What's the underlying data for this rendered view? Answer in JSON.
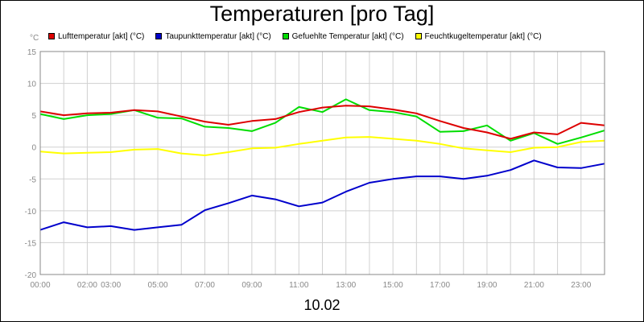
{
  "chart_data": {
    "type": "line",
    "title": "Temperaturen [pro Tag]",
    "date_label": "10.02",
    "y_unit": "°C",
    "ylim": [
      -20,
      15
    ],
    "y_ticks": [
      "15",
      "10",
      "5",
      "0",
      "-5",
      "-10",
      "-15",
      "-20"
    ],
    "x_ticks": [
      {
        "h": 0,
        "label": "00:00"
      },
      {
        "h": 2,
        "label": "02:00"
      },
      {
        "h": 3,
        "label": "03:00"
      },
      {
        "h": 5,
        "label": "05:00"
      },
      {
        "h": 7,
        "label": "07:00"
      },
      {
        "h": 9,
        "label": "09:00"
      },
      {
        "h": 11,
        "label": "11:00"
      },
      {
        "h": 13,
        "label": "13:00"
      },
      {
        "h": 15,
        "label": "15:00"
      },
      {
        "h": 17,
        "label": "17:00"
      },
      {
        "h": 19,
        "label": "19:00"
      },
      {
        "h": 21,
        "label": "21:00"
      },
      {
        "h": 23,
        "label": "23:00"
      }
    ],
    "grid": true,
    "x_hours": [
      0,
      1,
      2,
      3,
      4,
      5,
      6,
      7,
      8,
      9,
      10,
      11,
      12,
      13,
      14,
      15,
      16,
      17,
      18,
      19,
      20,
      21,
      22,
      23,
      24
    ],
    "series": [
      {
        "name": "Lufttemperatur [akt] (°C)",
        "color": "#dd0000",
        "values": [
          5.6,
          5.0,
          5.3,
          5.4,
          5.8,
          5.6,
          4.8,
          4.0,
          3.5,
          4.1,
          4.4,
          5.5,
          6.2,
          6.5,
          6.4,
          5.9,
          5.3,
          4.1,
          3.0,
          2.3,
          1.3,
          2.3,
          2.0,
          3.8,
          3.4
        ]
      },
      {
        "name": "Taupunkttemperatur [akt] (°C)",
        "color": "#0000cc",
        "values": [
          -13.0,
          -11.8,
          -12.6,
          -12.4,
          -13.0,
          -12.6,
          -12.2,
          -9.9,
          -8.8,
          -7.6,
          -8.2,
          -9.3,
          -8.7,
          -7.0,
          -5.6,
          -5.0,
          -4.6,
          -4.6,
          -5.0,
          -4.5,
          -3.6,
          -2.1,
          -3.2,
          -3.3,
          -2.6
        ]
      },
      {
        "name": "Gefuehlte Temperatur [akt] (°C)",
        "color": "#00dd00",
        "values": [
          5.2,
          4.4,
          5.0,
          5.2,
          5.8,
          4.6,
          4.5,
          3.2,
          3.0,
          2.5,
          3.8,
          6.3,
          5.5,
          7.5,
          5.8,
          5.5,
          4.8,
          2.4,
          2.5,
          3.4,
          1.0,
          2.2,
          0.5,
          1.5,
          2.6
        ]
      },
      {
        "name": "Feuchtkugeltemperatur [akt] (°C)",
        "color": "#ffff00",
        "values": [
          -0.7,
          -1.0,
          -0.9,
          -0.8,
          -0.4,
          -0.3,
          -1.0,
          -1.3,
          -0.8,
          -0.2,
          -0.1,
          0.5,
          1.0,
          1.5,
          1.6,
          1.3,
          1.0,
          0.5,
          -0.2,
          -0.5,
          -0.8,
          -0.1,
          0.0,
          0.8,
          1.0
        ]
      }
    ]
  }
}
